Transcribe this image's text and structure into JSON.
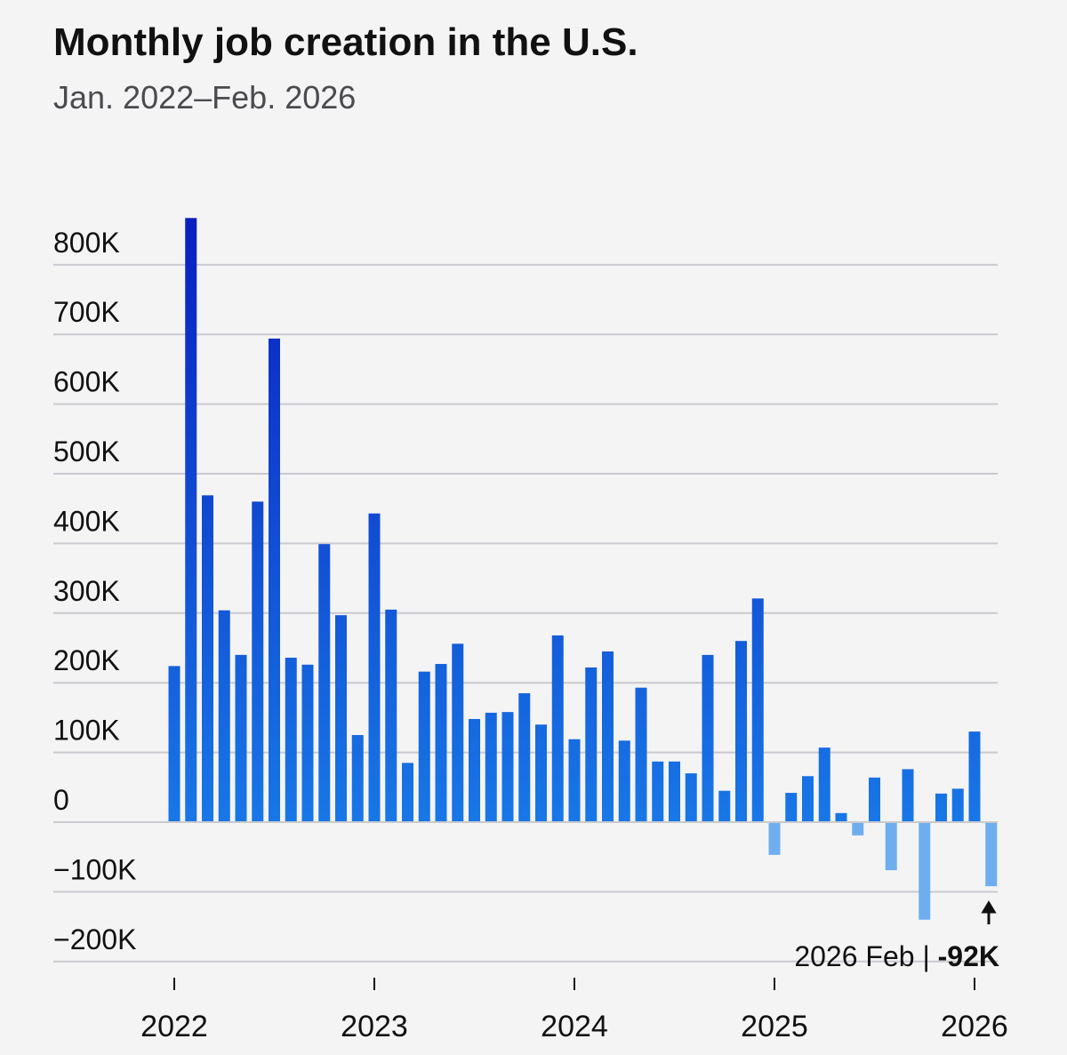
{
  "chart_data": {
    "type": "bar",
    "title": "Monthly job creation in the U.S.",
    "subtitle": "Jan. 2022–Feb. 2026",
    "categories": [
      "2022",
      null,
      null,
      null,
      null,
      null,
      null,
      null,
      null,
      null,
      null,
      null,
      "2023",
      null,
      null,
      null,
      null,
      null,
      null,
      null,
      null,
      null,
      null,
      null,
      "2024",
      null,
      null,
      null,
      null,
      null,
      null,
      null,
      null,
      null,
      null,
      null,
      "2025",
      null,
      null,
      null,
      null,
      null,
      null,
      null,
      null,
      null,
      null,
      null,
      "2026",
      null
    ],
    "values": [
      224,
      867,
      469,
      304,
      240,
      460,
      694,
      236,
      226,
      399,
      297,
      125,
      443,
      305,
      85,
      216,
      227,
      256,
      148,
      157,
      158,
      185,
      140,
      268,
      119,
      222,
      245,
      117,
      193,
      87,
      87,
      70,
      240,
      45,
      260,
      321,
      -47,
      42,
      66,
      107,
      13,
      -19,
      64,
      -69,
      76,
      -140,
      41,
      48,
      130,
      -92
    ],
    "ylim": [
      -200,
      880
    ],
    "yticks": [
      {
        "value": -200,
        "label": "−200K"
      },
      {
        "value": -100,
        "label": "−100K"
      },
      0,
      {
        "value": 100,
        "label": "100K"
      },
      {
        "value": 200,
        "label": "200K"
      },
      {
        "value": 300,
        "label": "300K"
      },
      {
        "value": 400,
        "label": "400K"
      },
      {
        "value": 500,
        "label": "500K"
      },
      {
        "value": 600,
        "label": "600K"
      },
      {
        "value": 700,
        "label": "700K"
      },
      {
        "value": 800,
        "label": "800K"
      }
    ],
    "grid": true,
    "positive_color_top": "#0a1fbf",
    "positive_color_bottom": "#1877e6",
    "negative_color": "#6eaeee",
    "annotation": {
      "text": "2026 Feb |",
      "value_label": "-92K"
    }
  }
}
